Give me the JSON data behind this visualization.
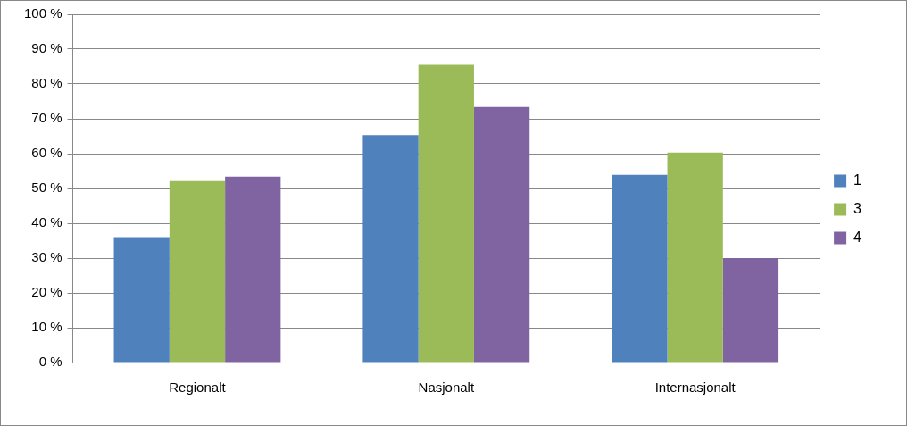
{
  "chart_data": {
    "type": "bar",
    "categories": [
      "Regionalt",
      "Nasjonalt",
      "Internasjonalt"
    ],
    "series": [
      {
        "name": "1",
        "color": "#4f81bd",
        "values": [
          36,
          65.3,
          53.9
        ]
      },
      {
        "name": "3",
        "color": "#9bbb59",
        "values": [
          52.1,
          85.5,
          60.3
        ]
      },
      {
        "name": "4",
        "color": "#8064a2",
        "values": [
          53.4,
          73.4,
          30
        ]
      }
    ],
    "ylim": [
      0,
      100
    ],
    "yticks": [
      {
        "value": 0,
        "label": "0 %"
      },
      {
        "value": 10,
        "label": "10 %"
      },
      {
        "value": 20,
        "label": "20 %"
      },
      {
        "value": 30,
        "label": "30 %"
      },
      {
        "value": 40,
        "label": "40 %"
      },
      {
        "value": 50,
        "label": "50 %"
      },
      {
        "value": 60,
        "label": "60 %"
      },
      {
        "value": 70,
        "label": "70 %"
      },
      {
        "value": 80,
        "label": "80 %"
      },
      {
        "value": 90,
        "label": "90 %"
      },
      {
        "value": 100,
        "label": "100 %"
      }
    ],
    "grid": "y",
    "legend": "right"
  }
}
